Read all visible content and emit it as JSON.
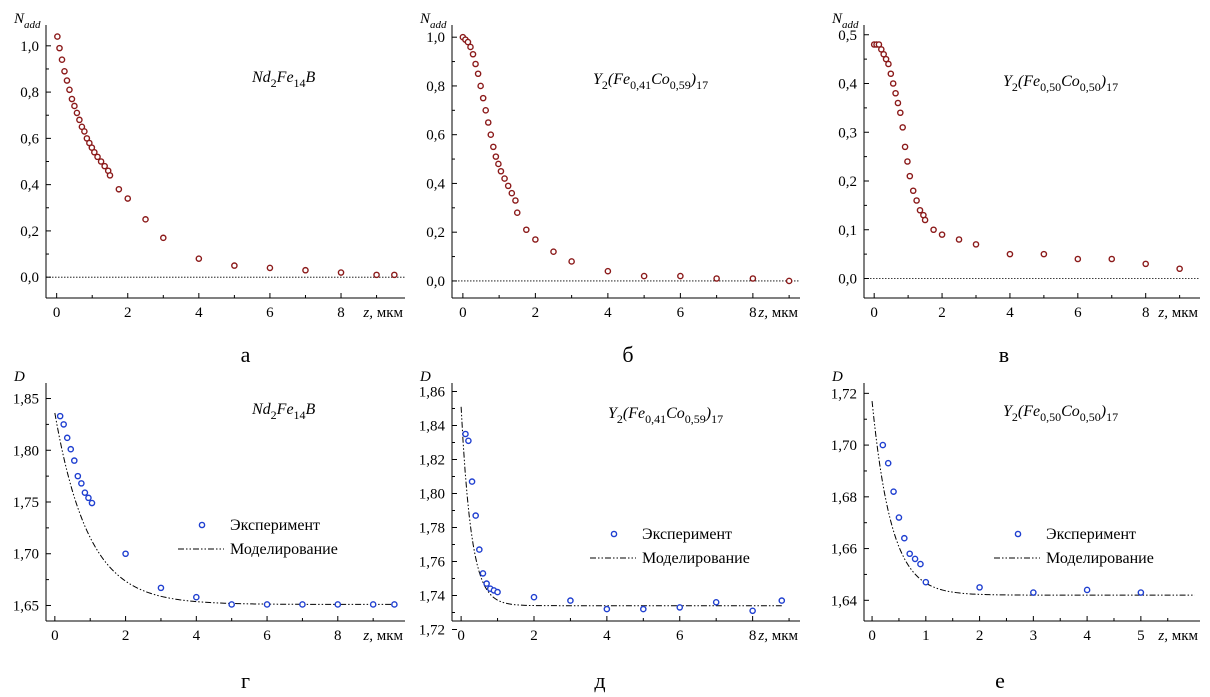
{
  "chart_data": [
    {
      "id": "a",
      "type": "scatter",
      "panel_label": "а",
      "ylabel_main": "N",
      "ylabel_sub": "add",
      "xlabel_var": "z,",
      "xlabel_unit": "мкм",
      "formula": [
        {
          "t": "Nd",
          "s": "n"
        },
        {
          "t": "2",
          "s": "sub"
        },
        {
          "t": "Fe",
          "s": "n"
        },
        {
          "t": "14",
          "s": "sub"
        },
        {
          "t": "B",
          "s": "n"
        }
      ],
      "xlim": [
        -0.3,
        9.8
      ],
      "ylim": [
        -0.09,
        1.09
      ],
      "xticks": [
        0,
        2,
        4,
        6,
        8
      ],
      "xtick_labels": [
        "0",
        "2",
        "4",
        "6",
        "8"
      ],
      "yticks": [
        0.0,
        0.2,
        0.4,
        0.6,
        0.8,
        1.0
      ],
      "ytick_labels": [
        "0,0",
        "0,2",
        "0,4",
        "0,6",
        "0,8",
        "1,0"
      ],
      "reference_line_y": 0,
      "series": [
        {
          "marker": "circle",
          "color": "#8b1a1a",
          "x": [
            0.02,
            0.08,
            0.15,
            0.22,
            0.29,
            0.36,
            0.43,
            0.5,
            0.57,
            0.64,
            0.71,
            0.78,
            0.85,
            0.92,
            0.99,
            1.06,
            1.15,
            1.25,
            1.35,
            1.45,
            1.5,
            1.75,
            2.0,
            2.5,
            3.0,
            4.0,
            5.0,
            6.0,
            7.0,
            8.0,
            9.0,
            9.5
          ],
          "y": [
            1.04,
            0.99,
            0.94,
            0.89,
            0.85,
            0.81,
            0.77,
            0.74,
            0.71,
            0.68,
            0.65,
            0.63,
            0.6,
            0.58,
            0.56,
            0.54,
            0.52,
            0.5,
            0.48,
            0.46,
            0.44,
            0.38,
            0.34,
            0.25,
            0.17,
            0.08,
            0.05,
            0.04,
            0.03,
            0.02,
            0.01,
            0.01
          ]
        }
      ]
    },
    {
      "id": "b",
      "type": "scatter",
      "panel_label": "б",
      "ylabel_main": "N",
      "ylabel_sub": "add",
      "xlabel_var": "z,",
      "xlabel_unit": "мкм",
      "formula": [
        {
          "t": "Y",
          "s": "n"
        },
        {
          "t": "2",
          "s": "sub"
        },
        {
          "t": "(Fe",
          "s": "n"
        },
        {
          "t": "0,41",
          "s": "sub"
        },
        {
          "t": "Co",
          "s": "n"
        },
        {
          "t": "0,59",
          "s": "sub"
        },
        {
          "t": ")",
          "s": "n"
        },
        {
          "t": "17",
          "s": "sub"
        }
      ],
      "xlim": [
        -0.3,
        9.3
      ],
      "ylim": [
        -0.07,
        1.05
      ],
      "xticks": [
        0,
        2,
        4,
        6,
        8
      ],
      "xtick_labels": [
        "0",
        "2",
        "4",
        "6",
        "8"
      ],
      "yticks": [
        0.0,
        0.2,
        0.4,
        0.6,
        0.8,
        1.0
      ],
      "ytick_labels": [
        "0,0",
        "0,2",
        "0,4",
        "0,6",
        "0,8",
        "1,0"
      ],
      "reference_line_y": 0,
      "series": [
        {
          "marker": "circle",
          "color": "#8b1a1a",
          "x": [
            0.0,
            0.07,
            0.14,
            0.21,
            0.28,
            0.35,
            0.42,
            0.49,
            0.56,
            0.63,
            0.7,
            0.77,
            0.84,
            0.91,
            0.98,
            1.05,
            1.15,
            1.25,
            1.35,
            1.45,
            1.5,
            1.75,
            2.0,
            2.5,
            3.0,
            4.0,
            5.0,
            6.0,
            7.0,
            8.0,
            9.0
          ],
          "y": [
            1.0,
            0.99,
            0.98,
            0.96,
            0.93,
            0.89,
            0.85,
            0.8,
            0.75,
            0.7,
            0.65,
            0.6,
            0.55,
            0.51,
            0.48,
            0.45,
            0.42,
            0.39,
            0.36,
            0.33,
            0.28,
            0.21,
            0.17,
            0.12,
            0.08,
            0.04,
            0.02,
            0.02,
            0.01,
            0.01,
            0.0
          ]
        }
      ]
    },
    {
      "id": "c",
      "type": "scatter",
      "panel_label": "в",
      "ylabel_main": "N",
      "ylabel_sub": "add",
      "xlabel_var": "z,",
      "xlabel_unit": "мкм",
      "formula": [
        {
          "t": "Y",
          "s": "n"
        },
        {
          "t": "2",
          "s": "sub"
        },
        {
          "t": "(Fe",
          "s": "n"
        },
        {
          "t": "0,50",
          "s": "sub"
        },
        {
          "t": "Co",
          "s": "n"
        },
        {
          "t": "0,50",
          "s": "sub"
        },
        {
          "t": ")",
          "s": "n"
        },
        {
          "t": "17",
          "s": "sub"
        }
      ],
      "xlim": [
        -0.3,
        9.6
      ],
      "ylim": [
        -0.04,
        0.52
      ],
      "xticks": [
        0,
        2,
        4,
        6,
        8
      ],
      "xtick_labels": [
        "0",
        "2",
        "4",
        "6",
        "8"
      ],
      "yticks": [
        0.0,
        0.1,
        0.2,
        0.3,
        0.4,
        0.5
      ],
      "ytick_labels": [
        "0,0",
        "0,1",
        "0,2",
        "0,3",
        "0,4",
        "0,5"
      ],
      "reference_line_y": 0,
      "series": [
        {
          "marker": "circle",
          "color": "#8b1a1a",
          "x": [
            0.0,
            0.07,
            0.14,
            0.21,
            0.28,
            0.35,
            0.42,
            0.49,
            0.56,
            0.63,
            0.7,
            0.77,
            0.84,
            0.91,
            0.98,
            1.05,
            1.15,
            1.25,
            1.35,
            1.45,
            1.5,
            1.75,
            2.0,
            2.5,
            3.0,
            4.0,
            5.0,
            6.0,
            7.0,
            8.0,
            9.0
          ],
          "y": [
            0.48,
            0.48,
            0.48,
            0.47,
            0.46,
            0.45,
            0.44,
            0.42,
            0.4,
            0.38,
            0.36,
            0.34,
            0.31,
            0.27,
            0.24,
            0.21,
            0.18,
            0.16,
            0.14,
            0.13,
            0.12,
            0.1,
            0.09,
            0.08,
            0.07,
            0.05,
            0.05,
            0.04,
            0.04,
            0.03,
            0.02
          ]
        }
      ]
    },
    {
      "id": "d",
      "type": "scatter",
      "panel_label": "г",
      "ylabel_main": "D",
      "ylabel_sub": "",
      "xlabel_var": "z,",
      "xlabel_unit": "мкм",
      "formula": [
        {
          "t": "Nd",
          "s": "n"
        },
        {
          "t": "2",
          "s": "sub"
        },
        {
          "t": "Fe",
          "s": "n"
        },
        {
          "t": "14",
          "s": "sub"
        },
        {
          "t": "B",
          "s": "n"
        }
      ],
      "xlim": [
        -0.25,
        9.9
      ],
      "ylim": [
        1.635,
        1.865
      ],
      "xticks": [
        0,
        2,
        4,
        6,
        8
      ],
      "xtick_labels": [
        "0",
        "2",
        "4",
        "6",
        "8"
      ],
      "yticks": [
        1.65,
        1.7,
        1.75,
        1.8,
        1.85
      ],
      "ytick_labels": [
        "1,65",
        "1,70",
        "1,75",
        "1,80",
        "1,85"
      ],
      "legend": {
        "experiment": "Эксперимент",
        "model": "Моделирование"
      },
      "experiment": {
        "marker": "circle",
        "color": "#1f3fd0",
        "x": [
          0.15,
          0.25,
          0.35,
          0.45,
          0.55,
          0.65,
          0.75,
          0.85,
          0.95,
          1.05,
          2.0,
          3.0,
          4.0,
          5.0,
          6.0,
          7.0,
          8.0,
          9.0,
          9.6
        ],
        "y": [
          1.833,
          1.825,
          1.812,
          1.801,
          1.79,
          1.775,
          1.768,
          1.759,
          1.754,
          1.749,
          1.7,
          1.667,
          1.658,
          1.651,
          1.651,
          1.651,
          1.651,
          1.651,
          1.651
        ]
      },
      "model": {
        "style": "dash-dot-dot",
        "color": "#000000",
        "y_start": 1.836,
        "y_end": 1.651,
        "decay_um": 0.95,
        "x_range": [
          0.0,
          9.6
        ]
      }
    },
    {
      "id": "e",
      "type": "scatter",
      "panel_label": "д",
      "ylabel_main": "D",
      "ylabel_sub": "",
      "xlabel_var": "z,",
      "xlabel_unit": "мкм",
      "formula": [
        {
          "t": "Y",
          "s": "n"
        },
        {
          "t": "2",
          "s": "sub"
        },
        {
          "t": "(Fe",
          "s": "n"
        },
        {
          "t": "0,41",
          "s": "sub"
        },
        {
          "t": "Co",
          "s": "n"
        },
        {
          "t": "0,59",
          "s": "sub"
        },
        {
          "t": ")",
          "s": "n"
        },
        {
          "t": "17",
          "s": "sub"
        }
      ],
      "xlim": [
        -0.25,
        9.3
      ],
      "ylim": [
        1.725,
        1.865
      ],
      "xticks": [
        0,
        2,
        4,
        6,
        8
      ],
      "xtick_labels": [
        "0",
        "2",
        "4",
        "6",
        "8"
      ],
      "yticks": [
        1.72,
        1.74,
        1.76,
        1.78,
        1.8,
        1.82,
        1.84,
        1.86
      ],
      "ytick_labels": [
        "1,72",
        "1,74",
        "1,76",
        "1,78",
        "1,80",
        "1,82",
        "1,84",
        "1,86"
      ],
      "legend": {
        "experiment": "Эксперимент",
        "model": "Моделирование"
      },
      "experiment": {
        "marker": "circle",
        "color": "#1f3fd0",
        "x": [
          0.12,
          0.2,
          0.3,
          0.4,
          0.5,
          0.6,
          0.7,
          0.8,
          0.9,
          1.0,
          2.0,
          3.0,
          4.0,
          5.0,
          6.0,
          7.0,
          8.0,
          8.8
        ],
        "y": [
          1.835,
          1.831,
          1.807,
          1.787,
          1.767,
          1.753,
          1.747,
          1.744,
          1.743,
          1.742,
          1.739,
          1.737,
          1.732,
          1.732,
          1.733,
          1.736,
          1.731,
          1.737
        ]
      },
      "model": {
        "style": "dash-dot-dot",
        "color": "#000000",
        "y_start": 1.851,
        "y_end": 1.734,
        "decay_um": 0.28,
        "x_range": [
          0.0,
          8.8
        ]
      }
    },
    {
      "id": "f",
      "type": "scatter",
      "panel_label": "е",
      "ylabel_main": "D",
      "ylabel_sub": "",
      "xlabel_var": "z,",
      "xlabel_unit": "мкм",
      "formula": [
        {
          "t": "Y",
          "s": "n"
        },
        {
          "t": "2",
          "s": "sub"
        },
        {
          "t": "(Fe",
          "s": "n"
        },
        {
          "t": "0,50",
          "s": "sub"
        },
        {
          "t": "Co",
          "s": "n"
        },
        {
          "t": "0,50",
          "s": "sub"
        },
        {
          "t": ")",
          "s": "n"
        },
        {
          "t": "17",
          "s": "sub"
        }
      ],
      "xlim": [
        -0.15,
        6.1
      ],
      "ylim": [
        1.632,
        1.724
      ],
      "xticks": [
        0,
        1,
        2,
        3,
        4,
        5
      ],
      "xtick_labels": [
        "0",
        "1",
        "2",
        "3",
        "4",
        "5"
      ],
      "yticks": [
        1.64,
        1.66,
        1.68,
        1.7,
        1.72
      ],
      "ytick_labels": [
        "1,64",
        "1,66",
        "1,68",
        "1,70",
        "1,72"
      ],
      "legend": {
        "experiment": "Эксперимент",
        "model": "Моделирование"
      },
      "experiment": {
        "marker": "circle",
        "color": "#1f3fd0",
        "x": [
          0.2,
          0.3,
          0.4,
          0.5,
          0.6,
          0.7,
          0.8,
          0.9,
          1.0,
          2.0,
          3.0,
          4.0,
          5.0
        ],
        "y": [
          1.7,
          1.693,
          1.682,
          1.672,
          1.664,
          1.658,
          1.656,
          1.654,
          1.647,
          1.645,
          1.643,
          1.644,
          1.643
        ]
      },
      "model": {
        "style": "dash-dot-dot",
        "color": "#000000",
        "y_start": 1.717,
        "y_end": 1.642,
        "decay_um": 0.36,
        "x_range": [
          0.0,
          6.0
        ]
      }
    }
  ]
}
